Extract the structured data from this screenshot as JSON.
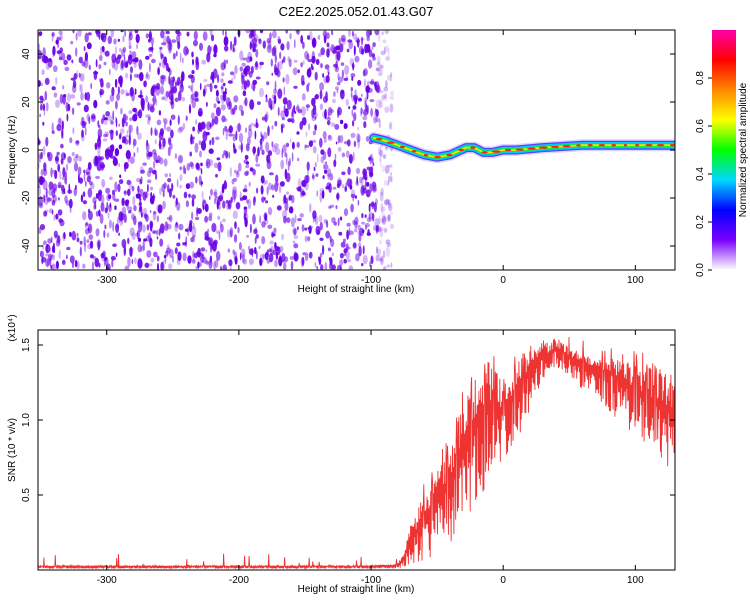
{
  "title": "C2E2.2025.052.01.43.G07",
  "chart_data": [
    {
      "type": "heatmap",
      "name": "spectrogram",
      "xlabel": "Height of straight line (km)",
      "ylabel": "Frequency (Hz)",
      "xlim": [
        -352,
        130
      ],
      "ylim": [
        -50,
        50
      ],
      "xticks": [
        -300,
        -200,
        -100,
        0,
        100
      ],
      "yticks": [
        -40,
        -20,
        0,
        20,
        40
      ],
      "noise_region": {
        "x_range": [
          -352,
          -90
        ],
        "color": "#6a00e6"
      },
      "ridge": {
        "x": [
          -98,
          -90,
          -80,
          -70,
          -60,
          -50,
          -40,
          -32,
          -28,
          -22,
          -15,
          -8,
          0,
          10,
          30,
          60,
          90,
          110,
          130
        ],
        "y": [
          5,
          4,
          2,
          0,
          -2,
          -3,
          -2,
          0,
          1,
          1,
          -1,
          -1,
          0,
          0,
          1,
          2,
          2,
          2,
          2
        ]
      },
      "colorbar": {
        "label": "Normalized spectral amplitude",
        "range": [
          0,
          1
        ],
        "ticks": [
          0.0,
          0.2,
          0.4,
          0.6,
          0.8
        ],
        "tick_labels": [
          "0.0",
          "0.2",
          "0.4",
          "0.6",
          "0.8"
        ],
        "colors": [
          "#ffffff",
          "#7a00ff",
          "#0000ff",
          "#00d8ff",
          "#00ff00",
          "#ffff00",
          "#ff8800",
          "#ff0000",
          "#ff00aa"
        ]
      }
    },
    {
      "type": "line",
      "name": "snr",
      "xlabel": "Height of straight line (km)",
      "ylabel": "SNR (10 * v/v)",
      "exponent_label": "(x10⁴)",
      "xlim": [
        -352,
        130
      ],
      "ylim": [
        0,
        1.6
      ],
      "xticks": [
        -300,
        -200,
        -100,
        0,
        100
      ],
      "yticks": [
        0.5,
        1.0,
        1.5
      ],
      "ytick_labels": [
        "0.5",
        "1.0",
        "1.5"
      ],
      "color": "#ee3333",
      "envelope": {
        "x": [
          -352,
          -100,
          -80,
          -75,
          -70,
          -60,
          -50,
          -40,
          -30,
          -20,
          -10,
          0,
          10,
          20,
          30,
          40,
          50,
          60,
          80,
          100,
          130
        ],
        "upper": [
          0.03,
          0.03,
          0.04,
          0.12,
          0.3,
          0.5,
          0.65,
          0.85,
          1.15,
          1.3,
          1.4,
          1.25,
          1.38,
          1.48,
          1.52,
          1.55,
          1.5,
          1.45,
          1.4,
          1.38,
          1.32
        ],
        "lower": [
          0.01,
          0.01,
          0.01,
          0.02,
          0.04,
          0.06,
          0.1,
          0.18,
          0.3,
          0.45,
          0.55,
          0.7,
          0.85,
          1.05,
          1.25,
          1.35,
          1.3,
          1.2,
          1.05,
          0.9,
          0.6
        ]
      }
    }
  ]
}
